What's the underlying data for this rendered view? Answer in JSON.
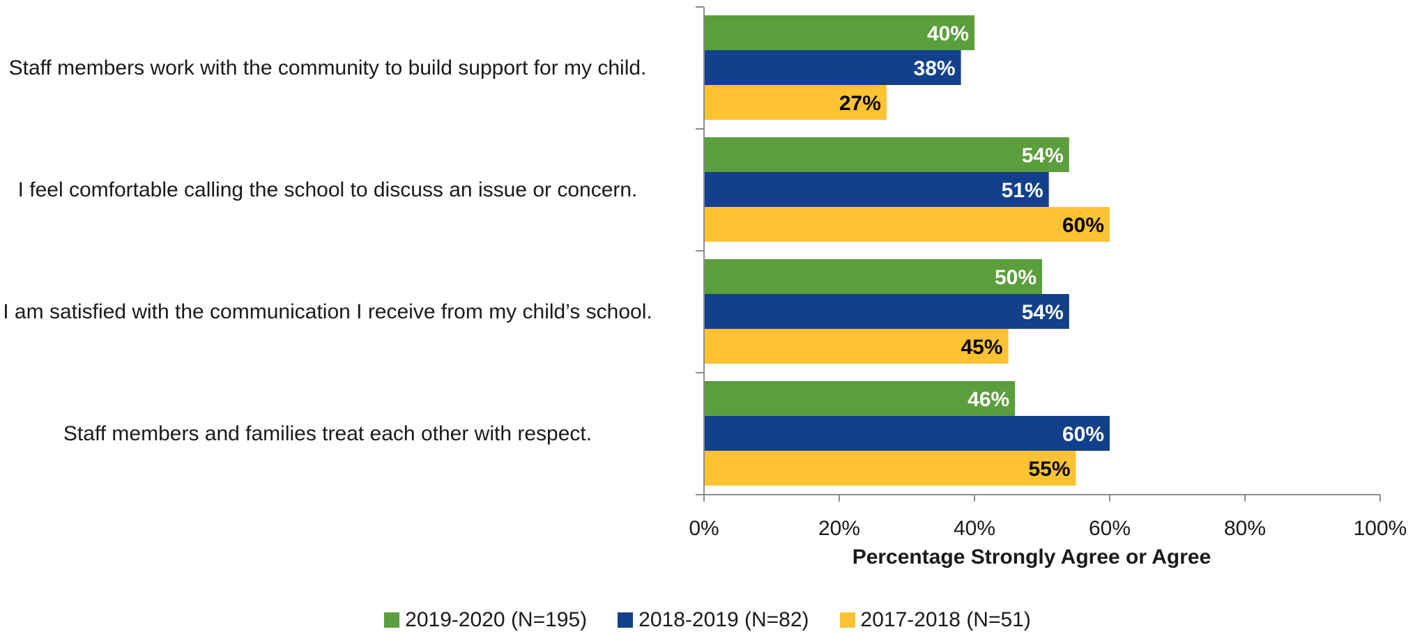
{
  "chart_data": {
    "type": "bar",
    "orientation": "horizontal",
    "categories": [
      "Staff members work with the community to build support for my child.",
      "I feel comfortable calling the school to discuss an issue or concern.",
      "I am satisfied with the communication I receive from my child’s school.",
      "Staff members and families treat each other with respect."
    ],
    "series": [
      {
        "name": "2019-2020 (N=195)",
        "color": "#5b9e3c",
        "label_color": "#ffffff",
        "values": [
          40,
          54,
          50,
          46
        ]
      },
      {
        "name": "2018-2019 (N=82)",
        "color": "#12408a",
        "label_color": "#ffffff",
        "values": [
          38,
          51,
          54,
          60
        ]
      },
      {
        "name": "2017-2018 (N=51)",
        "color": "#fec232",
        "label_color": "#000000",
        "values": [
          27,
          60,
          45,
          55
        ]
      }
    ],
    "data_labels": [
      [
        "40%",
        "54%",
        "50%",
        "46%"
      ],
      [
        "38%",
        "51%",
        "54%",
        "60%"
      ],
      [
        "27%",
        "60%",
        "45%",
        "55%"
      ]
    ],
    "xlabel": "Percentage Strongly Agree or Agree",
    "xlim": [
      0,
      100
    ],
    "xticks": [
      0,
      20,
      40,
      60,
      80,
      100
    ],
    "xtick_labels": [
      "0%",
      "20%",
      "40%",
      "60%",
      "80%",
      "100%"
    ],
    "grid": false,
    "legend_position": "bottom"
  }
}
